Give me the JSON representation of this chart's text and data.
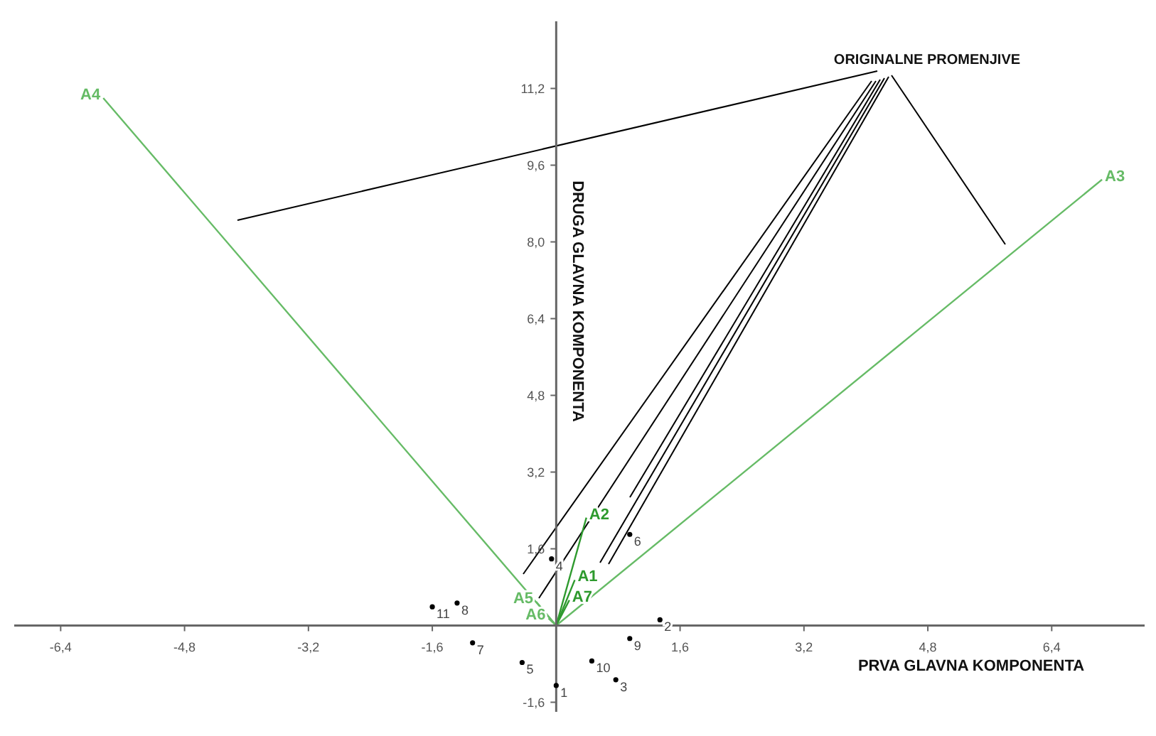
{
  "chart_data": {
    "type": "scatter",
    "xlabel": "PRVA GLAVNA KOMPONENTA",
    "ylabel": "DRUGA GLAVNA KOMPONENTA",
    "annotations": [
      "ORIGINALNE PROMENJIVE"
    ],
    "xlim": [
      -7,
      7.6
    ],
    "ylim": [
      -1.8,
      12.6
    ],
    "xticks": [
      {
        "value": -6.4,
        "label": "-6,4"
      },
      {
        "value": -4.8,
        "label": "-4,8"
      },
      {
        "value": -3.2,
        "label": "-3,2"
      },
      {
        "value": -1.6,
        "label": "-1,6"
      },
      {
        "value": 1.6,
        "label": "1,6"
      },
      {
        "value": 3.2,
        "label": "3,2"
      },
      {
        "value": 4.8,
        "label": "4,8"
      },
      {
        "value": 6.4,
        "label": "6,4"
      }
    ],
    "yticks": [
      {
        "value": -1.6,
        "label": "-1,6"
      },
      {
        "value": 1.6,
        "label": "1,6"
      },
      {
        "value": 3.2,
        "label": "3,2"
      },
      {
        "value": 4.8,
        "label": "4,8"
      },
      {
        "value": 6.4,
        "label": "6,4"
      },
      {
        "value": 8,
        "label": "8,0"
      },
      {
        "value": 9.6,
        "label": "9,6"
      },
      {
        "value": 11.2,
        "label": "11,2"
      }
    ],
    "marker": "circle",
    "grid": false,
    "legend": false,
    "series": [
      {
        "type": "line",
        "name": "A1",
        "color": "#2e9a2e",
        "x": [
          0,
          0.24
        ],
        "values": [
          0,
          0.95
        ],
        "marker": "none"
      },
      {
        "type": "line",
        "name": "A2",
        "color": "#2e9a2e",
        "x": [
          0,
          0.39
        ],
        "values": [
          0,
          2.25
        ],
        "marker": "none"
      },
      {
        "type": "line",
        "name": "A3",
        "color": "#66bb66",
        "x": [
          0,
          7.05
        ],
        "values": [
          0,
          9.3
        ],
        "marker": "none"
      },
      {
        "type": "line",
        "name": "A4",
        "color": "#66bb66",
        "x": [
          0,
          -5.85
        ],
        "values": [
          0,
          11
        ],
        "marker": "none"
      },
      {
        "type": "line",
        "name": "A5",
        "color": "#66bb66",
        "x": [
          0,
          -0.26
        ],
        "values": [
          0,
          0.5
        ],
        "marker": "none"
      },
      {
        "type": "line",
        "name": "A6",
        "color": "#66bb66",
        "x": [
          0,
          -0.1
        ],
        "values": [
          0,
          0.15
        ],
        "marker": "none"
      },
      {
        "type": "line",
        "name": "A7",
        "color": "#2e9a2e",
        "x": [
          0,
          0.17
        ],
        "values": [
          0,
          0.53
        ],
        "marker": "none"
      },
      {
        "name": "1",
        "color": "#000000",
        "x": [
          0
        ],
        "values": [
          -1.25
        ]
      },
      {
        "name": "2",
        "color": "#000000",
        "x": [
          1.34
        ],
        "values": [
          0.12
        ]
      },
      {
        "name": "3",
        "color": "#000000",
        "x": [
          0.77
        ],
        "values": [
          -1.13
        ]
      },
      {
        "name": "4",
        "color": "#000000",
        "x": [
          -0.06
        ],
        "values": [
          1.39
        ]
      },
      {
        "name": "5",
        "color": "#000000",
        "x": [
          -0.44
        ],
        "values": [
          -0.77
        ]
      },
      {
        "name": "6",
        "color": "#000000",
        "x": [
          0.95
        ],
        "values": [
          1.9
        ]
      },
      {
        "name": "7",
        "color": "#000000",
        "x": [
          -1.08
        ],
        "values": [
          -0.36
        ]
      },
      {
        "name": "8",
        "color": "#000000",
        "x": [
          -1.28
        ],
        "values": [
          0.47
        ]
      },
      {
        "name": "9",
        "color": "#000000",
        "x": [
          0.95
        ],
        "values": [
          -0.27
        ]
      },
      {
        "name": "10",
        "color": "#000000",
        "x": [
          0.46
        ],
        "values": [
          -0.74
        ]
      },
      {
        "name": "11",
        "color": "#000000",
        "x": [
          -1.6
        ],
        "values": [
          0.39
        ]
      }
    ]
  }
}
